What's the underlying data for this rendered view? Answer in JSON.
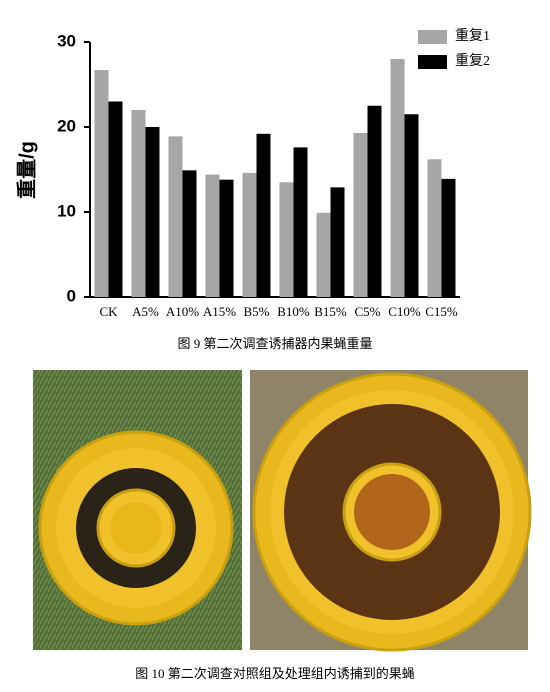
{
  "chart_data": {
    "type": "bar",
    "y_label": "重量/g",
    "caption": "图 9 第二次调查诱捕器内果蝇重量",
    "categories": [
      "CK",
      "A5%",
      "A10%",
      "A15%",
      "B5%",
      "B10%",
      "B15%",
      "C5%",
      "C10%",
      "C15%"
    ],
    "series": [
      {
        "name": "重复1",
        "color": "#a6a6a6",
        "values": [
          26.7,
          22.0,
          18.9,
          14.4,
          14.6,
          13.5,
          9.9,
          19.3,
          28.0,
          16.2
        ]
      },
      {
        "name": "重复2",
        "color": "#000000",
        "values": [
          23.0,
          20.0,
          14.9,
          13.8,
          19.2,
          17.6,
          12.9,
          22.5,
          21.5,
          13.9
        ]
      }
    ],
    "ylim": [
      0,
      30
    ],
    "yticks": [
      0,
      10,
      20,
      30
    ],
    "grid": false,
    "legend": "upper right"
  },
  "figure_10": {
    "caption": "图 10 第二次调查对照组及处理组内诱捕到的果蝇"
  }
}
